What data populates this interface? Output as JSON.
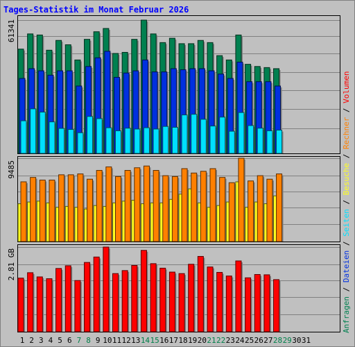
{
  "title": "Tages-Statistik im Monat Februar 2026",
  "colors": {
    "background": "#c0c0c0",
    "title": "#0000ff",
    "anfragen": "#008050",
    "dateien": "#0030e0",
    "seiten": "#00e0ff",
    "besuche": "#ffff20",
    "rechner": "#ff8000",
    "volumen": "#ff0000",
    "weekday": "#000000",
    "weekend": "#00804a"
  },
  "chart_data": [
    {
      "type": "bar",
      "panel": "top",
      "ytick_label": "61341",
      "ylim": [
        0,
        61341
      ],
      "categories": [
        "1",
        "2",
        "3",
        "4",
        "5",
        "6",
        "7",
        "8",
        "9",
        "10",
        "11",
        "12",
        "13",
        "14",
        "15",
        "16",
        "17",
        "18",
        "19",
        "20",
        "21",
        "22",
        "23",
        "24",
        "25",
        "26",
        "27",
        "28",
        "29",
        "30",
        "31"
      ],
      "series": [
        {
          "name": "Anfragen",
          "color_key": "anfragen",
          "values": [
            48000,
            55000,
            54500,
            47500,
            52000,
            50000,
            43000,
            52500,
            56000,
            57500,
            46000,
            46500,
            52500,
            61341,
            55000,
            51000,
            53000,
            50500,
            50500,
            52000,
            51000,
            45000,
            43000,
            54500,
            41000,
            40000,
            39500,
            39000,
            0,
            0,
            0
          ]
        },
        {
          "name": "Dateien",
          "color_key": "dateien",
          "values": [
            34500,
            39000,
            38000,
            36000,
            38000,
            38000,
            31000,
            40000,
            44000,
            47000,
            35000,
            37000,
            38000,
            43000,
            37500,
            37500,
            39000,
            38500,
            39000,
            39000,
            38000,
            36500,
            34500,
            42000,
            33000,
            33000,
            33000,
            31000,
            0,
            0,
            0
          ]
        },
        {
          "name": "Seiten",
          "color_key": "seiten",
          "values": [
            15000,
            20500,
            19000,
            14500,
            11500,
            11000,
            9500,
            17000,
            16000,
            11800,
            10400,
            11600,
            11200,
            11800,
            11200,
            12400,
            12000,
            17700,
            18000,
            15700,
            12600,
            16700,
            10200,
            18800,
            12800,
            11600,
            10400,
            10700,
            0,
            0,
            0
          ]
        }
      ]
    },
    {
      "type": "bar",
      "panel": "middle",
      "ytick_label": "9485",
      "ylim": [
        0,
        9485
      ],
      "categories": [
        "1",
        "2",
        "3",
        "4",
        "5",
        "6",
        "7",
        "8",
        "9",
        "10",
        "11",
        "12",
        "13",
        "14",
        "15",
        "16",
        "17",
        "18",
        "19",
        "20",
        "21",
        "22",
        "23",
        "24",
        "25",
        "26",
        "27",
        "28",
        "29",
        "30",
        "31"
      ],
      "series": [
        {
          "name": "Besuche",
          "color_key": "besuche",
          "values": [
            4300,
            4500,
            4600,
            4400,
            3900,
            4000,
            3900,
            3700,
            4100,
            4000,
            4400,
            4600,
            4700,
            4300,
            4400,
            4400,
            4800,
            5400,
            6000,
            4400,
            3900,
            4100,
            4500,
            6800,
            3900,
            4500,
            4300,
            5200,
            0,
            0,
            0
          ]
        },
        {
          "name": "Rechner",
          "color_key": "rechner",
          "values": [
            6800,
            7300,
            7000,
            7000,
            7600,
            7600,
            7700,
            7100,
            8100,
            8500,
            7400,
            8100,
            8400,
            8600,
            8100,
            7500,
            7400,
            8300,
            7800,
            8000,
            8300,
            7300,
            6700,
            9485,
            6900,
            7500,
            7100,
            7700,
            0,
            0,
            0
          ]
        }
      ]
    },
    {
      "type": "bar",
      "panel": "bottom",
      "ytick_label": "2.81 GB",
      "ylim": [
        0,
        2.81
      ],
      "categories": [
        "1",
        "2",
        "3",
        "4",
        "5",
        "6",
        "7",
        "8",
        "9",
        "10",
        "11",
        "12",
        "13",
        "14",
        "15",
        "16",
        "17",
        "18",
        "19",
        "20",
        "21",
        "22",
        "23",
        "24",
        "25",
        "26",
        "27",
        "28",
        "29",
        "30",
        "31"
      ],
      "series": [
        {
          "name": "Volumen",
          "color_key": "volumen",
          "values": [
            1.78,
            1.96,
            1.82,
            1.76,
            2.1,
            2.19,
            1.7,
            2.3,
            2.48,
            2.81,
            1.93,
            2.03,
            2.2,
            2.7,
            2.26,
            2.11,
            1.98,
            1.93,
            2.24,
            2.5,
            2.15,
            1.97,
            1.85,
            2.35,
            1.79,
            1.9,
            1.89,
            1.73,
            0,
            0,
            0
          ]
        }
      ]
    }
  ],
  "days": [
    {
      "label": "1",
      "weekend": false
    },
    {
      "label": "2",
      "weekend": false
    },
    {
      "label": "3",
      "weekend": false
    },
    {
      "label": "4",
      "weekend": false
    },
    {
      "label": "5",
      "weekend": false
    },
    {
      "label": "6",
      "weekend": false
    },
    {
      "label": "7",
      "weekend": true
    },
    {
      "label": "8",
      "weekend": true
    },
    {
      "label": "9",
      "weekend": false
    },
    {
      "label": "10",
      "weekend": false
    },
    {
      "label": "11",
      "weekend": false
    },
    {
      "label": "12",
      "weekend": false
    },
    {
      "label": "13",
      "weekend": false
    },
    {
      "label": "14",
      "weekend": true
    },
    {
      "label": "15",
      "weekend": true
    },
    {
      "label": "16",
      "weekend": false
    },
    {
      "label": "17",
      "weekend": false
    },
    {
      "label": "18",
      "weekend": false
    },
    {
      "label": "19",
      "weekend": false
    },
    {
      "label": "20",
      "weekend": false
    },
    {
      "label": "21",
      "weekend": true
    },
    {
      "label": "22",
      "weekend": true
    },
    {
      "label": "23",
      "weekend": false
    },
    {
      "label": "24",
      "weekend": false
    },
    {
      "label": "25",
      "weekend": false
    },
    {
      "label": "26",
      "weekend": false
    },
    {
      "label": "27",
      "weekend": false
    },
    {
      "label": "28",
      "weekend": true
    },
    {
      "label": "29",
      "weekend": true
    },
    {
      "label": "30",
      "weekend": false
    },
    {
      "label": "31",
      "weekend": false
    }
  ],
  "legend_right": [
    {
      "text": "Anfragen",
      "color_key": "anfragen"
    },
    {
      "text": " / ",
      "color_key": "weekday"
    },
    {
      "text": "Dateien",
      "color_key": "dateien"
    },
    {
      "text": " / ",
      "color_key": "weekday"
    },
    {
      "text": "Seiten",
      "color_key": "seiten"
    },
    {
      "text": " / ",
      "color_key": "weekday"
    },
    {
      "text": "Besuche",
      "color_key": "besuche"
    },
    {
      "text": " / ",
      "color_key": "weekday"
    },
    {
      "text": "Rechner",
      "color_key": "rechner"
    },
    {
      "text": " / ",
      "color_key": "weekday"
    },
    {
      "text": "Volumen",
      "color_key": "volumen"
    }
  ]
}
